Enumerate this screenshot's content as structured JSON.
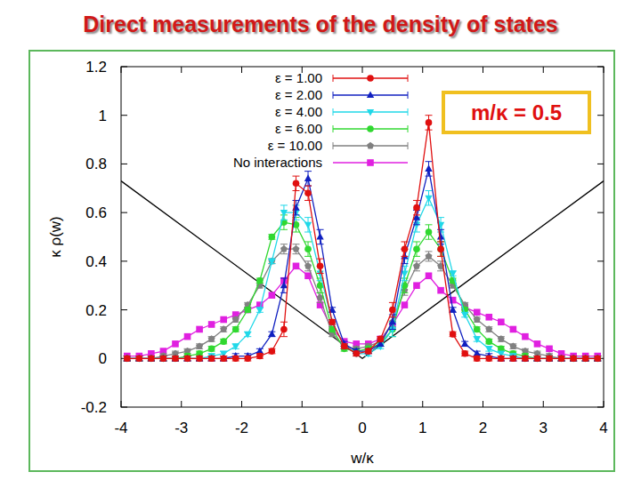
{
  "chart_data": {
    "type": "line",
    "title": "Direct measurements of the density of states",
    "xlabel": "w/κ",
    "ylabel": "κ ρ(w)",
    "annotations": [
      {
        "text": "m/κ = 0.5"
      }
    ],
    "xlim": [
      -4,
      4
    ],
    "ylim": [
      -0.2,
      1.2
    ],
    "xticks": [
      -4,
      -3,
      -2,
      -1,
      0,
      1,
      2,
      3,
      4
    ],
    "yticks": [
      -0.2,
      0,
      0.2,
      0.4,
      0.6,
      0.8,
      1,
      1.2
    ],
    "grid": false,
    "legend": "upper-center",
    "x": [
      -3.9,
      -3.7,
      -3.5,
      -3.3,
      -3.1,
      -2.9,
      -2.7,
      -2.5,
      -2.3,
      -2.1,
      -1.9,
      -1.7,
      -1.5,
      -1.3,
      -1.1,
      -0.9,
      -0.7,
      -0.5,
      -0.3,
      -0.1,
      0.1,
      0.3,
      0.5,
      0.7,
      0.9,
      1.1,
      1.3,
      1.5,
      1.7,
      1.9,
      2.1,
      2.3,
      2.5,
      2.7,
      2.9,
      3.1,
      3.3,
      3.5,
      3.7,
      3.9
    ],
    "series": [
      {
        "name": "ε = 1.00",
        "color": "#e01010",
        "marker": "circle",
        "line_style": "solid",
        "values": [
          0,
          0,
          0,
          0,
          0,
          0,
          0,
          0,
          0,
          0,
          0,
          0.01,
          0.03,
          0.12,
          0.72,
          0.68,
          0.38,
          0.15,
          0.05,
          0.02,
          0.03,
          0.08,
          0.2,
          0.45,
          0.62,
          0.97,
          0.45,
          0.1,
          0.02,
          0,
          0,
          0,
          0,
          0,
          0,
          0,
          0,
          0,
          0,
          0
        ],
        "errors": [
          0.01,
          0.01,
          0.01,
          0.01,
          0.01,
          0.01,
          0.01,
          0.01,
          0.01,
          0.01,
          0.01,
          0.01,
          0.01,
          0.03,
          0.03,
          0.03,
          0.03,
          0.01,
          0.01,
          0.01,
          0.01,
          0.01,
          0.03,
          0.03,
          0.03,
          0.03,
          0.03,
          0.01,
          0.01,
          0.01,
          0.01,
          0.01,
          0.01,
          0.01,
          0.01,
          0.01,
          0.01,
          0.01,
          0.01,
          0.01
        ]
      },
      {
        "name": "ε = 2.00",
        "color": "#1020c0",
        "marker": "triangle",
        "line_style": "solid",
        "values": [
          0,
          0,
          0,
          0,
          0,
          0,
          0,
          0,
          0,
          0.01,
          0.01,
          0.03,
          0.1,
          0.3,
          0.62,
          0.74,
          0.5,
          0.2,
          0.06,
          0.03,
          0.03,
          0.06,
          0.15,
          0.42,
          0.58,
          0.78,
          0.5,
          0.2,
          0.06,
          0.02,
          0.01,
          0,
          0,
          0,
          0,
          0,
          0,
          0,
          0,
          0
        ],
        "errors": [
          0.01,
          0.01,
          0.01,
          0.01,
          0.01,
          0.01,
          0.01,
          0.01,
          0.01,
          0.01,
          0.01,
          0.01,
          0.01,
          0.03,
          0.03,
          0.03,
          0.03,
          0.01,
          0.01,
          0.01,
          0.01,
          0.01,
          0.03,
          0.03,
          0.03,
          0.03,
          0.03,
          0.01,
          0.01,
          0.01,
          0.01,
          0.01,
          0.01,
          0.01,
          0.01,
          0.01,
          0.01,
          0.01,
          0.01,
          0.01
        ]
      },
      {
        "name": "ε = 4.00",
        "color": "#20d8e8",
        "marker": "triangle-down",
        "line_style": "solid",
        "values": [
          0,
          0,
          0,
          0,
          0,
          0,
          0,
          0.01,
          0.02,
          0.05,
          0.1,
          0.2,
          0.4,
          0.6,
          0.6,
          0.55,
          0.35,
          0.15,
          0.05,
          0.02,
          0.02,
          0.05,
          0.12,
          0.35,
          0.55,
          0.66,
          0.55,
          0.35,
          0.18,
          0.08,
          0.04,
          0.02,
          0.01,
          0,
          0,
          0,
          0,
          0,
          0,
          0
        ],
        "errors": [
          0.01,
          0.01,
          0.01,
          0.01,
          0.01,
          0.01,
          0.01,
          0.01,
          0.01,
          0.01,
          0.01,
          0.01,
          0.01,
          0.03,
          0.03,
          0.03,
          0.03,
          0.01,
          0.01,
          0.01,
          0.01,
          0.01,
          0.03,
          0.03,
          0.03,
          0.03,
          0.03,
          0.01,
          0.01,
          0.01,
          0.01,
          0.01,
          0.01,
          0.01,
          0.01,
          0.01,
          0.01,
          0.01,
          0.01,
          0.01
        ]
      },
      {
        "name": "ε = 6.00",
        "color": "#30d830",
        "marker": "circle",
        "line_style": "solid",
        "values": [
          0,
          0,
          0,
          0,
          0,
          0.01,
          0.02,
          0.04,
          0.07,
          0.12,
          0.2,
          0.32,
          0.5,
          0.56,
          0.55,
          0.45,
          0.3,
          0.12,
          0.04,
          0.03,
          0.04,
          0.06,
          0.12,
          0.3,
          0.45,
          0.52,
          0.45,
          0.32,
          0.2,
          0.12,
          0.07,
          0.04,
          0.02,
          0.01,
          0,
          0,
          0,
          0,
          0,
          0
        ],
        "errors": [
          0.01,
          0.01,
          0.01,
          0.01,
          0.01,
          0.01,
          0.01,
          0.01,
          0.01,
          0.01,
          0.01,
          0.01,
          0.01,
          0.03,
          0.03,
          0.03,
          0.03,
          0.01,
          0.01,
          0.01,
          0.01,
          0.01,
          0.03,
          0.03,
          0.03,
          0.03,
          0.03,
          0.01,
          0.01,
          0.01,
          0.01,
          0.01,
          0.01,
          0.01,
          0.01,
          0.01,
          0.01,
          0.01,
          0.01,
          0.01
        ]
      },
      {
        "name": "ε = 10.00",
        "color": "#808080",
        "marker": "pentagon",
        "line_style": "solid",
        "values": [
          0,
          0,
          0,
          0.01,
          0.02,
          0.03,
          0.05,
          0.08,
          0.12,
          0.16,
          0.22,
          0.3,
          0.4,
          0.45,
          0.45,
          0.38,
          0.25,
          0.1,
          0.05,
          0.04,
          0.05,
          0.07,
          0.15,
          0.28,
          0.38,
          0.42,
          0.38,
          0.3,
          0.22,
          0.16,
          0.12,
          0.08,
          0.05,
          0.03,
          0.02,
          0.01,
          0,
          0,
          0,
          0
        ],
        "errors": [
          0.01,
          0.01,
          0.01,
          0.01,
          0.01,
          0.01,
          0.01,
          0.01,
          0.01,
          0.01,
          0.01,
          0.01,
          0.01,
          0.02,
          0.02,
          0.02,
          0.02,
          0.01,
          0.01,
          0.01,
          0.01,
          0.01,
          0.02,
          0.02,
          0.02,
          0.02,
          0.02,
          0.01,
          0.01,
          0.01,
          0.01,
          0.01,
          0.01,
          0.01,
          0.01,
          0.01,
          0.01,
          0.01,
          0.01,
          0.01
        ]
      },
      {
        "name": "No interactions",
        "color": "#e020e0",
        "marker": "square",
        "line_style": "solid",
        "values": [
          0.01,
          0.01,
          0.02,
          0.03,
          0.06,
          0.09,
          0.12,
          0.14,
          0.16,
          0.18,
          0.2,
          0.22,
          0.26,
          0.32,
          0.38,
          0.34,
          0.22,
          0.12,
          0.07,
          0.06,
          0.06,
          0.08,
          0.14,
          0.22,
          0.3,
          0.34,
          0.28,
          0.24,
          0.21,
          0.19,
          0.17,
          0.15,
          0.12,
          0.09,
          0.06,
          0.04,
          0.02,
          0.01,
          0.01,
          0.01
        ]
      },
      {
        "color": "#000000",
        "marker": "none",
        "line_style": "solid",
        "x": [
          -4,
          0,
          4
        ],
        "values": [
          0.73,
          0,
          0.73
        ]
      }
    ]
  }
}
